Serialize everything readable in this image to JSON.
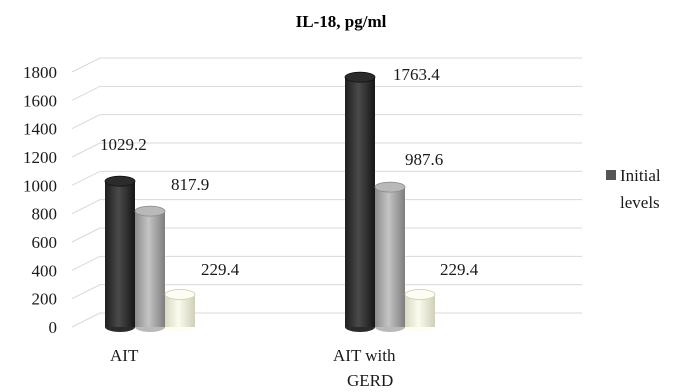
{
  "chart_data": {
    "type": "bar",
    "title": "IL-18, pg/ml",
    "categories": [
      [
        "AIT"
      ],
      [
        "AIT with",
        "GERD"
      ]
    ],
    "series": [
      {
        "name": "Initial levels",
        "values": [
          1029.2,
          1763.4
        ],
        "labels": [
          "1029.2",
          "1763.4"
        ],
        "color": "#3a3a3a"
      },
      {
        "values": [
          817.9,
          987.6
        ],
        "labels": [
          "817.9",
          "987.6"
        ],
        "color": "#a8a8a8"
      },
      {
        "values": [
          229.4,
          229.4
        ],
        "labels": [
          "229.4",
          "229.4"
        ],
        "color": "#f2f2e0"
      }
    ],
    "legend": {
      "lines": [
        "Initial",
        "levels"
      ],
      "position": "right"
    },
    "ylim": [
      0,
      1800
    ],
    "yticks": [
      "0",
      "200",
      "400",
      "600",
      "800",
      "1000",
      "1200",
      "1400",
      "1600",
      "1800"
    ],
    "grid": true,
    "style": "3d-cylinder"
  }
}
